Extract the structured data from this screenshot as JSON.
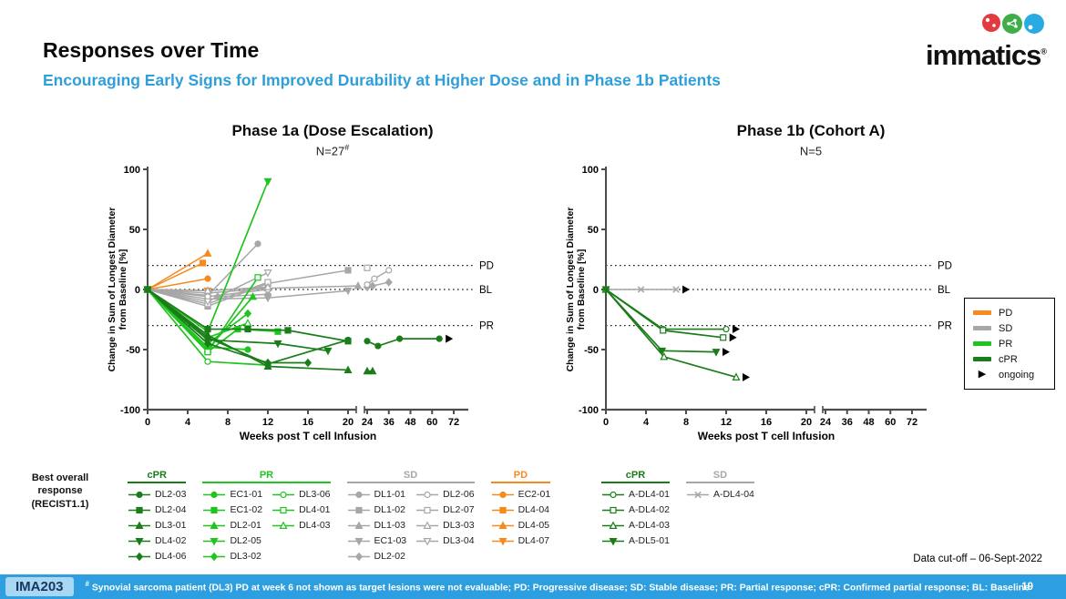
{
  "slide": {
    "title": "Responses over Time",
    "subtitle": "Encouraging Early Signs for Improved Durability at Higher Dose and in Phase 1b Patients",
    "logo": {
      "text": "immatics",
      "registered": "®"
    },
    "data_cutoff": "Data cut-off – 06-Sept-2022",
    "best_overall_lines": [
      "Best overall",
      "response",
      "(RECIST1.1)"
    ],
    "footer": {
      "program": "IMA203",
      "footnote_marker": "#",
      "footnote": " Synovial sarcoma patient (DL3) PD at week 6 not shown as target lesions were not evaluable; PD: Progressive disease; SD: Stable disease; PR: Partial response; cPR: Confirmed partial response; BL: Baseline",
      "page": "19"
    }
  },
  "colors": {
    "PD": "#f6891f",
    "SD": "#a7a7a7",
    "PR": "#20c420",
    "cPR": "#1a7d1a",
    "ongoing": "#000000",
    "axis": "#4d4d4d",
    "accent_blue": "#2e9fd9",
    "footer_bar": "#2d9fe0",
    "badge_bg": "#a8d7f4",
    "badge_text": "#16365c",
    "logo_red": "#e23a3e",
    "logo_green": "#3fae49",
    "logo_blue": "#29abe2"
  },
  "response_box": {
    "items": [
      {
        "label": "PD",
        "key": "PD"
      },
      {
        "label": "SD",
        "key": "SD"
      },
      {
        "label": "PR",
        "key": "PR"
      },
      {
        "label": "cPR",
        "key": "cPR"
      }
    ],
    "ongoing_label": "ongoing"
  },
  "chart_data": [
    {
      "type": "line",
      "title": "Phase 1a (Dose Escalation)",
      "n_label": "N=27",
      "n_superscript": "#",
      "xlabel": "Weeks post T cell Infusion",
      "ylabel_lines": [
        "Change in Sum of Longest Diameter",
        "from Baseline [%]"
      ],
      "ylim": [
        -100,
        100
      ],
      "yticks": [
        -100,
        -50,
        0,
        50,
        100
      ],
      "xticks": [
        0,
        4,
        8,
        12,
        16,
        20
      ],
      "xticks_after_break": [
        24,
        36,
        48,
        60,
        72
      ],
      "ref_lines": [
        {
          "y": 20,
          "label": "PD"
        },
        {
          "y": 0,
          "label": "BL"
        },
        {
          "y": -30,
          "label": "PR"
        }
      ],
      "series": [
        {
          "id": "EC2-01",
          "group": "PD",
          "marker": "circle",
          "fill": "filled",
          "ongoing": false,
          "points": [
            [
              0,
              0
            ],
            [
              6,
              9
            ]
          ]
        },
        {
          "id": "DL4-04",
          "group": "PD",
          "marker": "square",
          "fill": "filled",
          "ongoing": false,
          "points": [
            [
              0,
              0
            ],
            [
              5.5,
              22
            ]
          ]
        },
        {
          "id": "DL4-05",
          "group": "PD",
          "marker": "triangle",
          "fill": "filled",
          "ongoing": false,
          "points": [
            [
              0,
              0
            ],
            [
              6,
              30
            ]
          ]
        },
        {
          "id": "DL4-07",
          "group": "PD",
          "marker": "tri-down",
          "fill": "filled",
          "ongoing": false,
          "points": [
            [
              0,
              0
            ],
            [
              6,
              -1
            ]
          ]
        },
        {
          "id": "DL1-01",
          "group": "SD",
          "marker": "circle",
          "fill": "filled",
          "ongoing": false,
          "points": [
            [
              0,
              0
            ],
            [
              6,
              -5
            ],
            [
              11,
              38
            ]
          ]
        },
        {
          "id": "DL1-02",
          "group": "SD",
          "marker": "square",
          "fill": "filled",
          "ongoing": false,
          "points": [
            [
              0,
              0
            ],
            [
              6,
              -14
            ],
            [
              12,
              5
            ],
            [
              20,
              16
            ]
          ]
        },
        {
          "id": "DL1-03",
          "group": "SD",
          "marker": "triangle",
          "fill": "filled",
          "ongoing": false,
          "points": [
            [
              0,
              0
            ],
            [
              6,
              -3
            ],
            [
              12,
              1
            ],
            [
              21,
              3
            ]
          ]
        },
        {
          "id": "EC1-03",
          "group": "SD",
          "marker": "tri-down",
          "fill": "filled",
          "ongoing": false,
          "points": [
            [
              0,
              0
            ],
            [
              6,
              -8
            ],
            [
              12,
              -7
            ],
            [
              20,
              -1
            ]
          ]
        },
        {
          "id": "DL2-02",
          "group": "SD",
          "marker": "diamond",
          "fill": "filled",
          "ongoing": false,
          "points": [
            [
              0,
              0
            ],
            [
              7,
              -6
            ],
            [
              12,
              -4
            ],
            [
              24,
              2
            ],
            [
              27,
              3
            ],
            [
              36,
              6
            ]
          ]
        },
        {
          "id": "DL2-06",
          "group": "SD",
          "marker": "circle",
          "fill": "open",
          "ongoing": false,
          "points": [
            [
              0,
              0
            ],
            [
              6,
              -6
            ],
            [
              12,
              0
            ],
            [
              24,
              4
            ],
            [
              28,
              9
            ],
            [
              36,
              16
            ]
          ]
        },
        {
          "id": "DL2-07",
          "group": "SD",
          "marker": "square",
          "fill": "open",
          "ongoing": false,
          "points": [
            [
              0,
              0
            ],
            [
              6,
              -12
            ],
            [
              12,
              6
            ],
            [
              24,
              18
            ]
          ]
        },
        {
          "id": "DL3-03",
          "group": "SD",
          "marker": "triangle",
          "fill": "open",
          "ongoing": false,
          "points": [
            [
              0,
              0
            ],
            [
              6,
              -1
            ],
            [
              12,
              2
            ]
          ]
        },
        {
          "id": "DL3-04",
          "group": "SD",
          "marker": "tri-down",
          "fill": "open",
          "ongoing": false,
          "points": [
            [
              0,
              0
            ],
            [
              6,
              -10
            ],
            [
              12,
              14
            ]
          ]
        },
        {
          "id": "EC1-01",
          "group": "PR",
          "marker": "circle",
          "fill": "filled",
          "ongoing": false,
          "points": [
            [
              0,
              0
            ],
            [
              6,
              -48
            ],
            [
              10,
              -50
            ]
          ]
        },
        {
          "id": "EC1-02",
          "group": "PR",
          "marker": "square",
          "fill": "filled",
          "ongoing": false,
          "points": [
            [
              0,
              0
            ],
            [
              6,
              -52
            ],
            [
              9,
              -33
            ],
            [
              13,
              -35
            ]
          ]
        },
        {
          "id": "DL2-01",
          "group": "PR",
          "marker": "triangle",
          "fill": "filled",
          "ongoing": false,
          "points": [
            [
              0,
              0
            ],
            [
              6,
              -50
            ],
            [
              10.5,
              -6
            ]
          ]
        },
        {
          "id": "DL2-05",
          "group": "PR",
          "marker": "tri-down",
          "fill": "filled",
          "ongoing": false,
          "points": [
            [
              0,
              0
            ],
            [
              6,
              -35
            ],
            [
              12,
              90
            ]
          ]
        },
        {
          "id": "DL3-02",
          "group": "PR",
          "marker": "diamond",
          "fill": "filled",
          "ongoing": false,
          "points": [
            [
              0,
              0
            ],
            [
              6,
              -45
            ],
            [
              10,
              -20
            ]
          ]
        },
        {
          "id": "DL3-06",
          "group": "PR",
          "marker": "circle",
          "fill": "open",
          "ongoing": false,
          "points": [
            [
              0,
              0
            ],
            [
              6,
              -60
            ],
            [
              12,
              -63
            ]
          ]
        },
        {
          "id": "DL4-01",
          "group": "PR",
          "marker": "square",
          "fill": "open",
          "ongoing": false,
          "points": [
            [
              0,
              0
            ],
            [
              6,
              -52
            ],
            [
              11,
              10
            ]
          ]
        },
        {
          "id": "DL4-03",
          "group": "PR",
          "marker": "triangle",
          "fill": "open",
          "ongoing": false,
          "points": [
            [
              0,
              0
            ],
            [
              6,
              -40
            ],
            [
              10,
              -28
            ]
          ]
        },
        {
          "id": "DL2-03",
          "group": "cPR",
          "marker": "circle",
          "fill": "filled",
          "ongoing": true,
          "points": [
            [
              0,
              0
            ],
            [
              6,
              -40
            ],
            [
              12,
              -62
            ],
            [
              20,
              -42
            ],
            [
              24,
              -43
            ],
            [
              30,
              -47
            ],
            [
              42,
              -41
            ],
            [
              64,
              -41
            ]
          ]
        },
        {
          "id": "DL2-04",
          "group": "cPR",
          "marker": "square",
          "fill": "filled",
          "ongoing": false,
          "points": [
            [
              0,
              0
            ],
            [
              6,
              -33
            ],
            [
              10,
              -33
            ],
            [
              14,
              -34
            ],
            [
              20,
              -43
            ]
          ]
        },
        {
          "id": "DL3-01",
          "group": "cPR",
          "marker": "triangle",
          "fill": "filled",
          "ongoing": false,
          "points": [
            [
              0,
              0
            ],
            [
              6,
              -38
            ],
            [
              12,
              -64
            ],
            [
              20,
              -67
            ],
            [
              24,
              -68
            ],
            [
              27,
              -68
            ]
          ]
        },
        {
          "id": "DL4-02",
          "group": "cPR",
          "marker": "tri-down",
          "fill": "filled",
          "ongoing": false,
          "points": [
            [
              0,
              0
            ],
            [
              6,
              -42
            ],
            [
              13,
              -45
            ],
            [
              18,
              -51
            ]
          ]
        },
        {
          "id": "DL4-06",
          "group": "cPR",
          "marker": "diamond",
          "fill": "filled",
          "ongoing": false,
          "points": [
            [
              0,
              0
            ],
            [
              6,
              -45
            ],
            [
              12,
              -61
            ],
            [
              16,
              -61
            ]
          ]
        }
      ]
    },
    {
      "type": "line",
      "title": "Phase 1b (Cohort A)",
      "n_label": "N=5",
      "n_superscript": "",
      "xlabel": "Weeks post T cell Infusion",
      "ylabel_lines": [
        "Change in Sum of Longest Diameter",
        "from Baseline [%]"
      ],
      "ylim": [
        -100,
        100
      ],
      "yticks": [
        -100,
        -50,
        0,
        50,
        100
      ],
      "xticks": [
        0,
        4,
        8,
        12,
        16,
        20
      ],
      "xticks_after_break": [
        24,
        36,
        48,
        60,
        72
      ],
      "ref_lines": [
        {
          "y": 20,
          "label": "PD"
        },
        {
          "y": 0,
          "label": "BL"
        },
        {
          "y": -30,
          "label": "PR"
        }
      ],
      "series": [
        {
          "id": "A-DL4-04",
          "group": "SD",
          "marker": "x",
          "fill": "open",
          "ongoing": true,
          "points": [
            [
              0,
              0
            ],
            [
              3.5,
              0
            ],
            [
              7,
              0
            ]
          ]
        },
        {
          "id": "A-DL4-01",
          "group": "cPR",
          "marker": "circle",
          "fill": "open",
          "ongoing": true,
          "points": [
            [
              0,
              0
            ],
            [
              5.7,
              -33
            ],
            [
              12,
              -33
            ]
          ]
        },
        {
          "id": "A-DL4-02",
          "group": "cPR",
          "marker": "square",
          "fill": "open",
          "ongoing": true,
          "points": [
            [
              0,
              0
            ],
            [
              5.7,
              -34
            ],
            [
              11.7,
              -40
            ]
          ]
        },
        {
          "id": "A-DL4-03",
          "group": "cPR",
          "marker": "triangle",
          "fill": "open",
          "ongoing": true,
          "points": [
            [
              0,
              0
            ],
            [
              5.8,
              -56
            ],
            [
              13,
              -73
            ]
          ]
        },
        {
          "id": "A-DL5-01",
          "group": "cPR",
          "marker": "tri-down",
          "fill": "filled",
          "ongoing": true,
          "points": [
            [
              0,
              0
            ],
            [
              5.6,
              -51
            ],
            [
              11,
              -52
            ]
          ]
        }
      ]
    }
  ],
  "legends": {
    "phase1a": {
      "groups": [
        {
          "label": "cPR",
          "key": "cPR",
          "rows": 5,
          "item_ids": [
            "DL2-03",
            "DL2-04",
            "DL3-01",
            "DL4-02",
            "DL4-06"
          ]
        },
        {
          "label": "PR",
          "key": "PR",
          "rows": 5,
          "item_ids": [
            "EC1-01",
            "EC1-02",
            "DL2-01",
            "DL2-05",
            "DL3-02",
            "DL3-06",
            "DL4-01",
            "DL4-03"
          ]
        },
        {
          "label": "SD",
          "key": "SD",
          "rows": 5,
          "item_ids": [
            "DL1-01",
            "DL1-02",
            "DL1-03",
            "EC1-03",
            "DL2-02",
            "DL2-06",
            "DL2-07",
            "DL3-03",
            "DL3-04"
          ]
        },
        {
          "label": "PD",
          "key": "PD",
          "rows": 4,
          "item_ids": [
            "EC2-01",
            "DL4-04",
            "DL4-05",
            "DL4-07"
          ]
        }
      ]
    },
    "phase1b": {
      "groups": [
        {
          "label": "cPR",
          "key": "cPR",
          "rows": 4,
          "item_ids": [
            "A-DL4-01",
            "A-DL4-02",
            "A-DL4-03",
            "A-DL5-01"
          ]
        },
        {
          "label": "SD",
          "key": "SD",
          "rows": 1,
          "item_ids": [
            "A-DL4-04"
          ]
        }
      ]
    }
  }
}
